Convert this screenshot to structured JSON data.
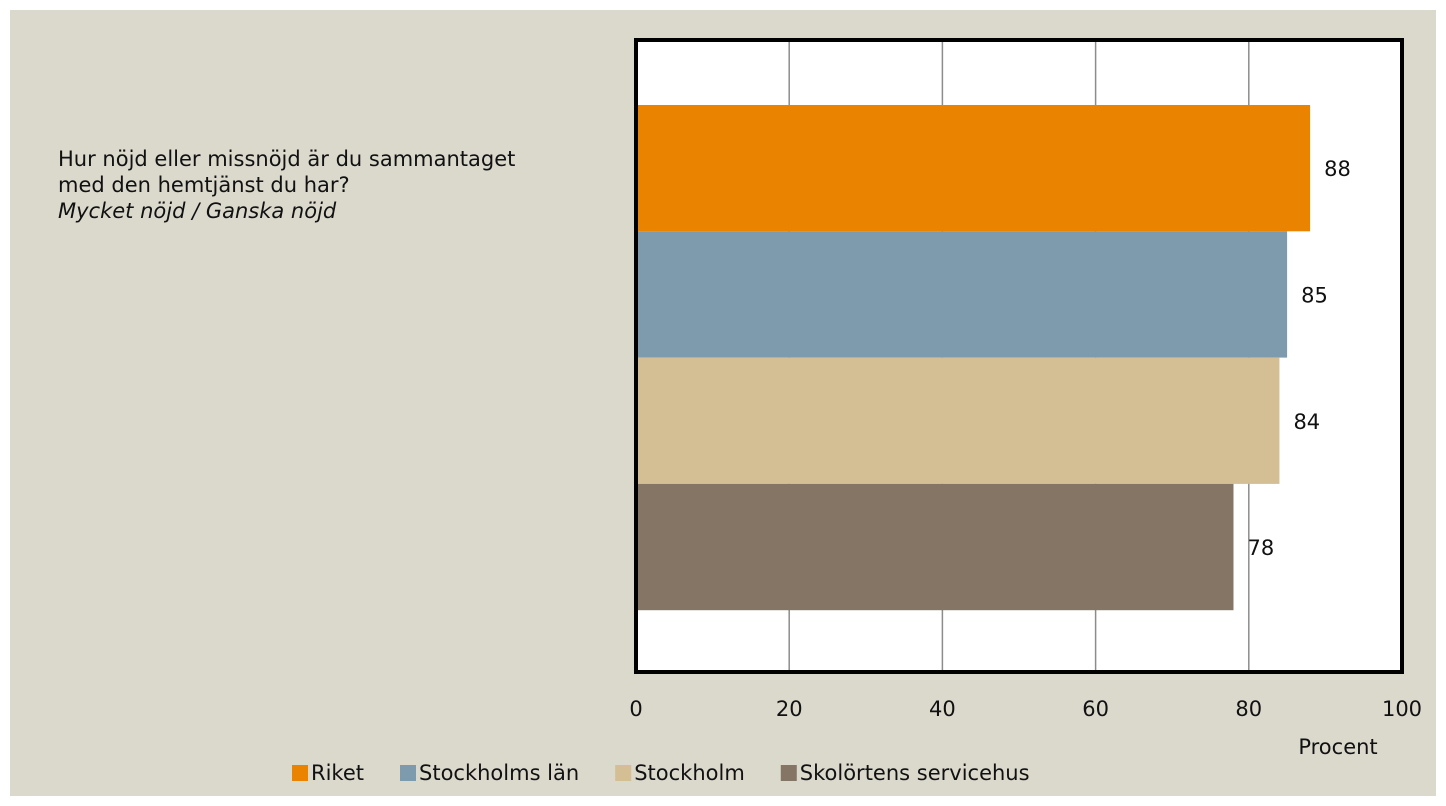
{
  "chart_data": {
    "type": "bar",
    "orientation": "horizontal",
    "title": "Hur nöjd eller missnöjd är du sammantaget med den hemtjänst du har?",
    "subtitle": "Mycket nöjd / Ganska nöjd",
    "x_label": "Procent",
    "series": [
      {
        "name": "Riket",
        "color": "#e98300",
        "values": [
          88
        ]
      },
      {
        "name": "Stockholms län",
        "color": "#7e9bae",
        "values": [
          85
        ]
      },
      {
        "name": "Stockholm",
        "color": "#d4be94",
        "values": [
          84
        ]
      },
      {
        "name": "Skolörtens servicehus",
        "color": "#857565",
        "values": [
          78
        ]
      }
    ],
    "xlim": [
      0,
      100
    ],
    "xticks": [
      0,
      20,
      40,
      60,
      80,
      100
    ],
    "grid": true,
    "legend": "bottom"
  }
}
